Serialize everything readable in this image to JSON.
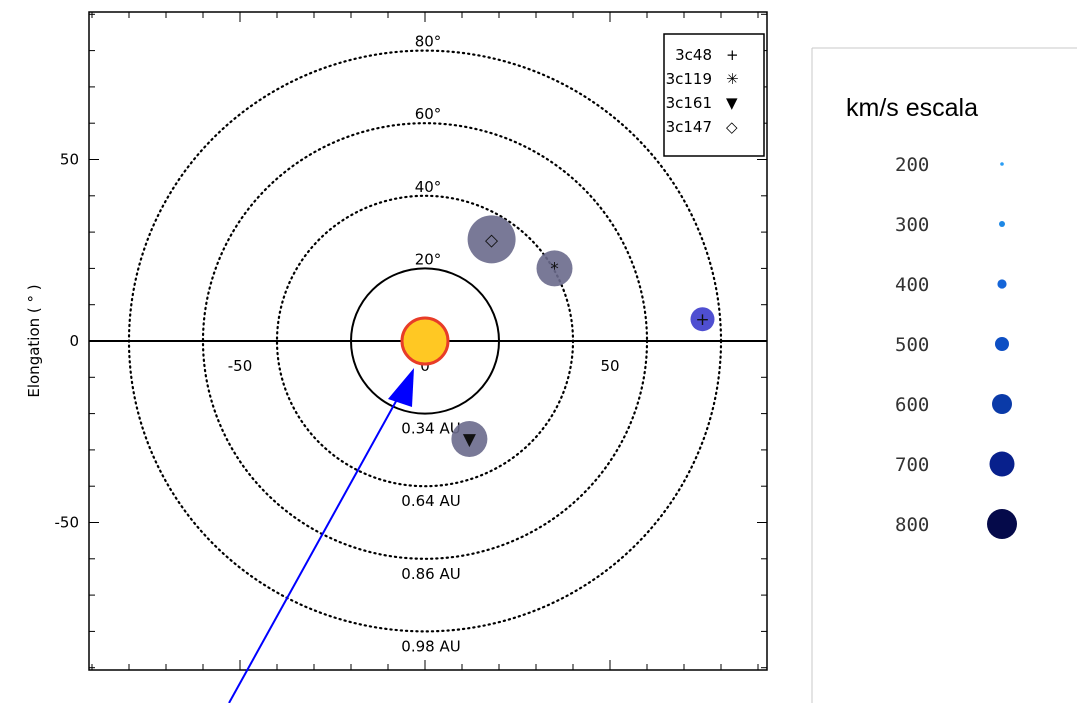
{
  "chart_data": {
    "type": "scatter",
    "ylabel": "Elongation ( ° )",
    "xlim": [
      -90,
      90
    ],
    "ylim": [
      -90,
      90
    ],
    "x_ticks": [
      {
        "value": -50,
        "label": "-50"
      },
      {
        "value": 0,
        "label": "0"
      },
      {
        "value": 50,
        "label": "50"
      }
    ],
    "y_ticks": [
      {
        "value": 50,
        "label": "50"
      },
      {
        "value": 0,
        "label": "0"
      },
      {
        "value": -50,
        "label": "-50"
      }
    ],
    "rings": [
      {
        "radius": 20,
        "angle_label": "20°",
        "dist_label": "0.34 AU",
        "style": "solid"
      },
      {
        "radius": 40,
        "angle_label": "40°",
        "dist_label": "0.64 AU",
        "style": "dotted"
      },
      {
        "radius": 60,
        "angle_label": "60°",
        "dist_label": "0.86 AU",
        "style": "dotted"
      },
      {
        "radius": 80,
        "angle_label": "80°",
        "dist_label": "0.98 AU",
        "style": "dotted"
      }
    ],
    "sources": [
      {
        "name": "3c48",
        "symbol": "+",
        "x": 75,
        "y": 6,
        "speed_kms": 400,
        "color": "#3c3ccc"
      },
      {
        "name": "3c119",
        "symbol": "*",
        "x": 35,
        "y": 20,
        "speed_kms": 600,
        "color": "#6a6a8c"
      },
      {
        "name": "3c161",
        "symbol": "▼",
        "x": 12,
        "y": -27,
        "speed_kms": 600,
        "color": "#6a6a8c"
      },
      {
        "name": "3c147",
        "symbol": "◇",
        "x": 18,
        "y": 28,
        "speed_kms": 700,
        "color": "#6a6a8c"
      }
    ],
    "legend": [
      {
        "name": "3c48",
        "symbol": "+"
      },
      {
        "name": "3c119",
        "symbol": "✳"
      },
      {
        "name": "3c161",
        "symbol": "▼"
      },
      {
        "name": "3c147",
        "symbol": "◇"
      }
    ],
    "legend_placement": "top-right",
    "sun": {
      "x": 0,
      "y": 0,
      "fill": "#ffc823",
      "stroke": "#e83c28"
    },
    "arrow": {
      "color": "#0000ff",
      "target": "sun"
    }
  },
  "speed_scale": {
    "title": "km/s escala",
    "items": [
      {
        "label": "200",
        "speed": 200,
        "color": "#2a9df4"
      },
      {
        "label": "300",
        "speed": 300,
        "color": "#1e88e5"
      },
      {
        "label": "400",
        "speed": 400,
        "color": "#1565d8"
      },
      {
        "label": "500",
        "speed": 500,
        "color": "#0d4fc4"
      },
      {
        "label": "600",
        "speed": 600,
        "color": "#0a3aa8"
      },
      {
        "label": "700",
        "speed": 700,
        "color": "#08208c"
      },
      {
        "label": "800",
        "speed": 800,
        "color": "#050a4a"
      }
    ]
  }
}
